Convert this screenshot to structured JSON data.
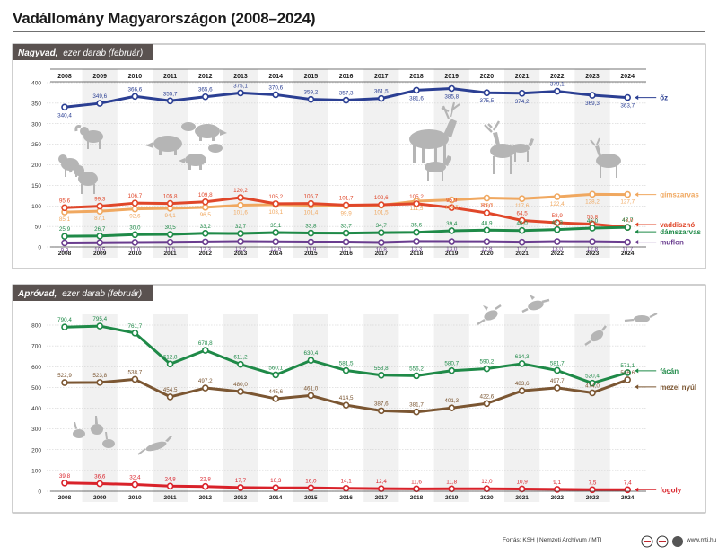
{
  "title": "Vadállomány Magyarországon (2008–2024)",
  "source": "Forrás: KSH | Nemzeti Archívum / MTI",
  "website": "www.mti.hu",
  "colors": {
    "oz": "#2b3f93",
    "gimszarvas": "#f0a860",
    "vaddiszno": "#e0472a",
    "damszarvas": "#1f8a48",
    "muflon": "#6a3d8f",
    "facan": "#1f8a48",
    "mezei_nyul": "#7b5632",
    "fogoly": "#d9222a"
  },
  "chart_data": [
    {
      "type": "line",
      "header": "Nagyvad,",
      "subtitle": "ezer darab (február)",
      "categories": [
        "2008",
        "2009",
        "2010",
        "2011",
        "2012",
        "2013",
        "2014",
        "2015",
        "2016",
        "2017",
        "2018",
        "2019",
        "2020",
        "2021",
        "2022",
        "2023",
        "2024"
      ],
      "ylim": [
        0,
        400
      ],
      "yticks": [
        0,
        50,
        100,
        150,
        200,
        250,
        300,
        350,
        400
      ],
      "grid": true,
      "series": [
        {
          "key": "oz",
          "name": "őz",
          "values": [
            340.4,
            349.6,
            366.6,
            355.7,
            365.6,
            375.1,
            370.6,
            359.2,
            357.3,
            361.5,
            381.6,
            385.8,
            375.5,
            374.2,
            379.1,
            369.3,
            363.7
          ],
          "labels": [
            "340,4",
            "349,6",
            "366,6",
            "355,7",
            "365,6",
            "375,1",
            "370,6",
            "359,2",
            "357,3",
            "361,5",
            "381,6",
            "385,8",
            "375,5",
            "374,2",
            "379,1",
            "369,3",
            "363,7"
          ],
          "label_pos": "mixed"
        },
        {
          "key": "gimszarvas",
          "name": "gímszarvas",
          "values": [
            85.1,
            87.1,
            92.6,
            94.1,
            96.5,
            101.6,
            103.1,
            101.4,
            99.9,
            101.5,
            111.5,
            114.5,
            119.1,
            117.6,
            122.4,
            128.2,
            127.7
          ],
          "labels": [
            "85,1",
            "87,1",
            "92,6",
            "94,1",
            "96,5",
            "101,6",
            "103,1",
            "101,4",
            "99,9",
            "101,5",
            "111,5",
            "114,5",
            "119,1",
            "117,6",
            "122,4",
            "128,2",
            "127,7"
          ]
        },
        {
          "key": "vaddiszno",
          "name": "vaddisznó",
          "values": [
            95.6,
            99.3,
            106.7,
            105.8,
            109.8,
            120.2,
            105.2,
            105.7,
            101.7,
            102.6,
            105.2,
            95.9,
            83.0,
            64.5,
            58.9,
            55.8,
            48.0
          ],
          "labels": [
            "95,6",
            "99,3",
            "106,7",
            "105,8",
            "109,8",
            "120,2",
            "105,2",
            "105,7",
            "101,7",
            "102,6",
            "105,2",
            "95,9",
            "83,0",
            "64,5",
            "58,9",
            "55,8",
            "48,0"
          ]
        },
        {
          "key": "damszarvas",
          "name": "dámszarvas",
          "values": [
            25.9,
            26.7,
            30.0,
            30.5,
            33.2,
            32.7,
            35.1,
            33.8,
            33.7,
            34.7,
            35.6,
            39.4,
            40.9,
            40.0,
            42.3,
            46.0,
            47.7
          ],
          "labels": [
            "25,9",
            "26,7",
            "30,0",
            "30,5",
            "33,2",
            "32,7",
            "35,1",
            "33,8",
            "33,7",
            "34,7",
            "35,6",
            "39,4",
            "40,9",
            "40,0",
            "42,3",
            "46,0",
            "47,7"
          ]
        },
        {
          "key": "muflon",
          "name": "muflon",
          "values": [
            9.9,
            10.5,
            11.0,
            11.5,
            12.3,
            13.2,
            12.6,
            11.9,
            12.1,
            10.8,
            13.3,
            13.0,
            12.8,
            11.7,
            13.0,
            12.8,
            11.7
          ],
          "labels": [
            "9,9",
            "10,5",
            "11,0",
            "11,5",
            "12,3",
            "13,2",
            "12,6",
            "11,9",
            "12,1",
            "10,8",
            "13,3",
            "13,0",
            "12,8",
            "11,7",
            "13,0",
            "12,8",
            "11,7"
          ]
        }
      ]
    },
    {
      "type": "line",
      "header": "Apróvad,",
      "subtitle": "ezer darab (február)",
      "categories": [
        "2008",
        "2009",
        "2010",
        "2011",
        "2012",
        "2013",
        "2014",
        "2015",
        "2016",
        "2017",
        "2018",
        "2019",
        "2020",
        "2021",
        "2022",
        "2023",
        "2024"
      ],
      "ylim": [
        0,
        800
      ],
      "yticks": [
        0,
        100,
        200,
        300,
        400,
        500,
        600,
        700,
        800
      ],
      "grid": true,
      "series": [
        {
          "key": "facan",
          "name": "fácán",
          "values": [
            790.4,
            795.4,
            761.7,
            612.8,
            678.8,
            611.2,
            560.1,
            630.4,
            581.5,
            558.8,
            556.2,
            580.7,
            590.2,
            614.3,
            581.7,
            520.4,
            571.1
          ],
          "labels": [
            "790,4",
            "795,4",
            "761,7",
            "612,8",
            "678,8",
            "611,2",
            "560,1",
            "630,4",
            "581,5",
            "558,8",
            "556,2",
            "580,7",
            "590,2",
            "614,3",
            "581,7",
            "520,4",
            "571,1"
          ]
        },
        {
          "key": "mezei_nyul",
          "name": "mezei nyúl",
          "values": [
            522.9,
            523.8,
            538.7,
            454.5,
            497.2,
            480.0,
            445.6,
            461.0,
            414.5,
            387.6,
            381.7,
            401.3,
            422.6,
            483.6,
            497.7,
            474.0,
            536.6
          ],
          "labels": [
            "522,9",
            "523,8",
            "538,7",
            "454,5",
            "497,2",
            "480,0",
            "445,6",
            "461,0",
            "414,5",
            "387,6",
            "381,7",
            "401,3",
            "422,6",
            "483,6",
            "497,7",
            "474,0",
            "536,6"
          ]
        },
        {
          "key": "fogoly",
          "name": "fogoly",
          "values": [
            39.8,
            36.6,
            32.4,
            24.8,
            22.8,
            17.7,
            16.3,
            16.0,
            14.1,
            12.4,
            11.6,
            11.8,
            12.0,
            10.9,
            9.1,
            7.5,
            7.4
          ],
          "labels": [
            "39,8",
            "36,6",
            "32,4",
            "24,8",
            "22,8",
            "17,7",
            "16,3",
            "16,0",
            "14,1",
            "12,4",
            "11,6",
            "11,8",
            "12,0",
            "10,9",
            "9,1",
            "7,5",
            "7,4"
          ]
        }
      ]
    }
  ]
}
